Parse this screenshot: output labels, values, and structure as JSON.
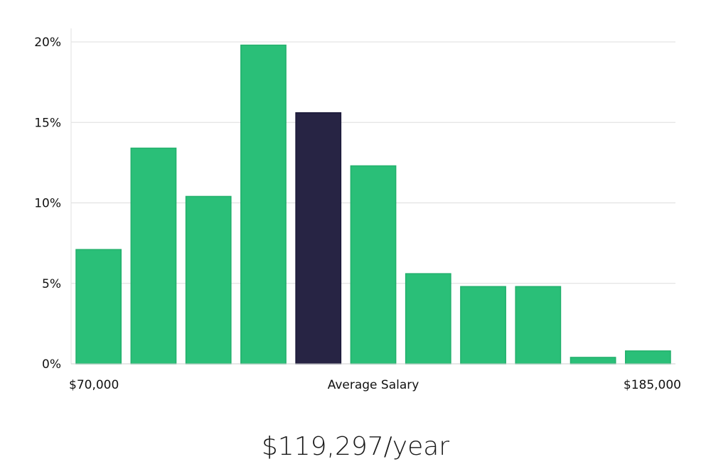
{
  "chart_data": {
    "type": "bar",
    "title": "",
    "xlabel": "Average Salary",
    "ylabel": "",
    "x_range_labels": [
      "$70,000",
      "$185,000"
    ],
    "ylim": [
      0,
      20
    ],
    "yticks": [
      "0%",
      "5%",
      "10%",
      "15%",
      "20%"
    ],
    "ytick_values": [
      0,
      5,
      10,
      15,
      20
    ],
    "values": [
      7.1,
      13.4,
      10.4,
      19.8,
      15.6,
      12.3,
      5.6,
      4.8,
      4.8,
      0.4,
      0.8
    ],
    "highlight_index": 4,
    "grid": true,
    "colors": {
      "bar": "#2abf78",
      "highlight": "#272444",
      "grid": "#dddddd"
    }
  },
  "average_salary": "$119,297/year"
}
